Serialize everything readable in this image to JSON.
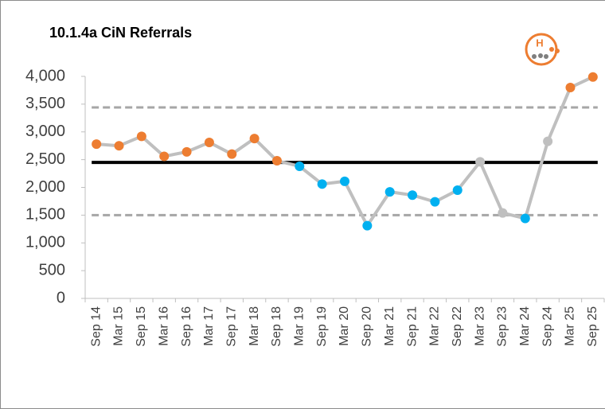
{
  "chart_data": {
    "type": "line",
    "title": "10.1.4a  CiN Referrals",
    "logo_text": "H",
    "categories": [
      "Sep 14",
      "Mar 15",
      "Sep 15",
      "Mar 16",
      "Sep 16",
      "Mar 17",
      "Sep 17",
      "Mar 18",
      "Sep 18",
      "Mar 19",
      "Sep 19",
      "Mar 20",
      "Sep 20",
      "Mar 21",
      "Sep 21",
      "Mar 22",
      "Sep 22",
      "Mar 23",
      "Sep 23",
      "Mar 24",
      "Sep 24",
      "Mar 25",
      "Sep 25"
    ],
    "values": [
      2780,
      2750,
      2920,
      2560,
      2640,
      2810,
      2600,
      2880,
      2480,
      2380,
      2060,
      2110,
      1310,
      1920,
      1860,
      1740,
      1950,
      2460,
      1540,
      1440,
      2830,
      3800,
      3990
    ],
    "point_colors": [
      "#ed7d31",
      "#ed7d31",
      "#ed7d31",
      "#ed7d31",
      "#ed7d31",
      "#ed7d31",
      "#ed7d31",
      "#ed7d31",
      "#ed7d31",
      "#00b0f0",
      "#00b0f0",
      "#00b0f0",
      "#00b0f0",
      "#00b0f0",
      "#00b0f0",
      "#00b0f0",
      "#00b0f0",
      "#bfbfbf",
      "#bfbfbf",
      "#00b0f0",
      "#bfbfbf",
      "#ed7d31",
      "#ed7d31"
    ],
    "line_color": "#bfbfbf",
    "mean": 2450,
    "upper_limit": 3440,
    "lower_limit": 1500,
    "ylim": [
      0,
      4000
    ],
    "yticks": [
      0,
      500,
      {
        "value": 1000,
        "label": "1,000"
      },
      {
        "value": 1500,
        "label": "1,500"
      },
      {
        "value": 2000,
        "label": "2,000"
      },
      {
        "value": 2500,
        "label": "2,500"
      },
      {
        "value": 3000,
        "label": "3,000"
      },
      {
        "value": 3500,
        "label": "3,500"
      },
      {
        "value": 4000,
        "label": "4,000"
      }
    ]
  }
}
